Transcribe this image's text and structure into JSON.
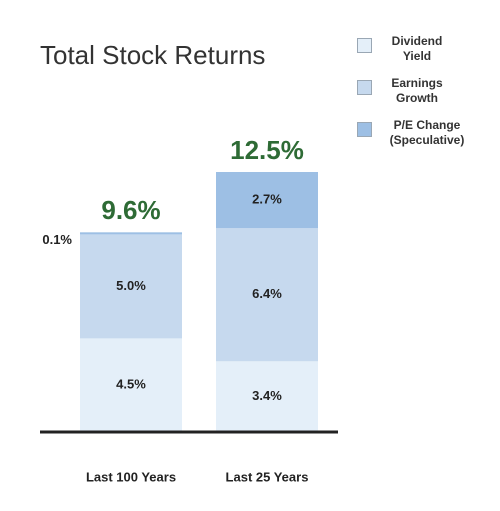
{
  "chart_data": {
    "type": "stacked_bar",
    "title": "Total Stock Returns",
    "categories": [
      "Last 100 Years",
      "Last 25 Years"
    ],
    "series": [
      {
        "name": "Dividend Yield",
        "color": "#e4eff9",
        "values": [
          4.5,
          3.4
        ],
        "value_labels": [
          "4.5%",
          "3.4%"
        ]
      },
      {
        "name": "Earnings Growth",
        "color": "#c6d9ee",
        "values": [
          5.0,
          6.4
        ],
        "value_labels": [
          "5.0%",
          "6.4%"
        ]
      },
      {
        "name": "P/E Change (Speculative)",
        "color": "#9dbfe4",
        "values": [
          0.1,
          2.7
        ],
        "value_labels": [
          "0.1%",
          "2.7%"
        ]
      }
    ],
    "totals": [
      9.6,
      12.5
    ],
    "total_labels": [
      "9.6%",
      "12.5%"
    ],
    "total_color": "#2e6b35"
  }
}
